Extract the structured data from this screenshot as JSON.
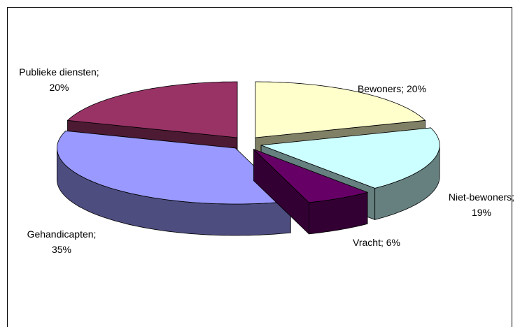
{
  "chart_data": {
    "type": "pie3d",
    "values": [
      20,
      19,
      6,
      35,
      20
    ],
    "value_labels": [
      "Bewoners; 20%",
      "Niet-bewoners; 19%",
      "Vracht; 6%",
      "Gehandicapten; 35%",
      "Publieke diensten; 20%"
    ],
    "colors": [
      "#ffffcc",
      "#ccffff",
      "#660066",
      "#9999ff",
      "#993366"
    ]
  }
}
